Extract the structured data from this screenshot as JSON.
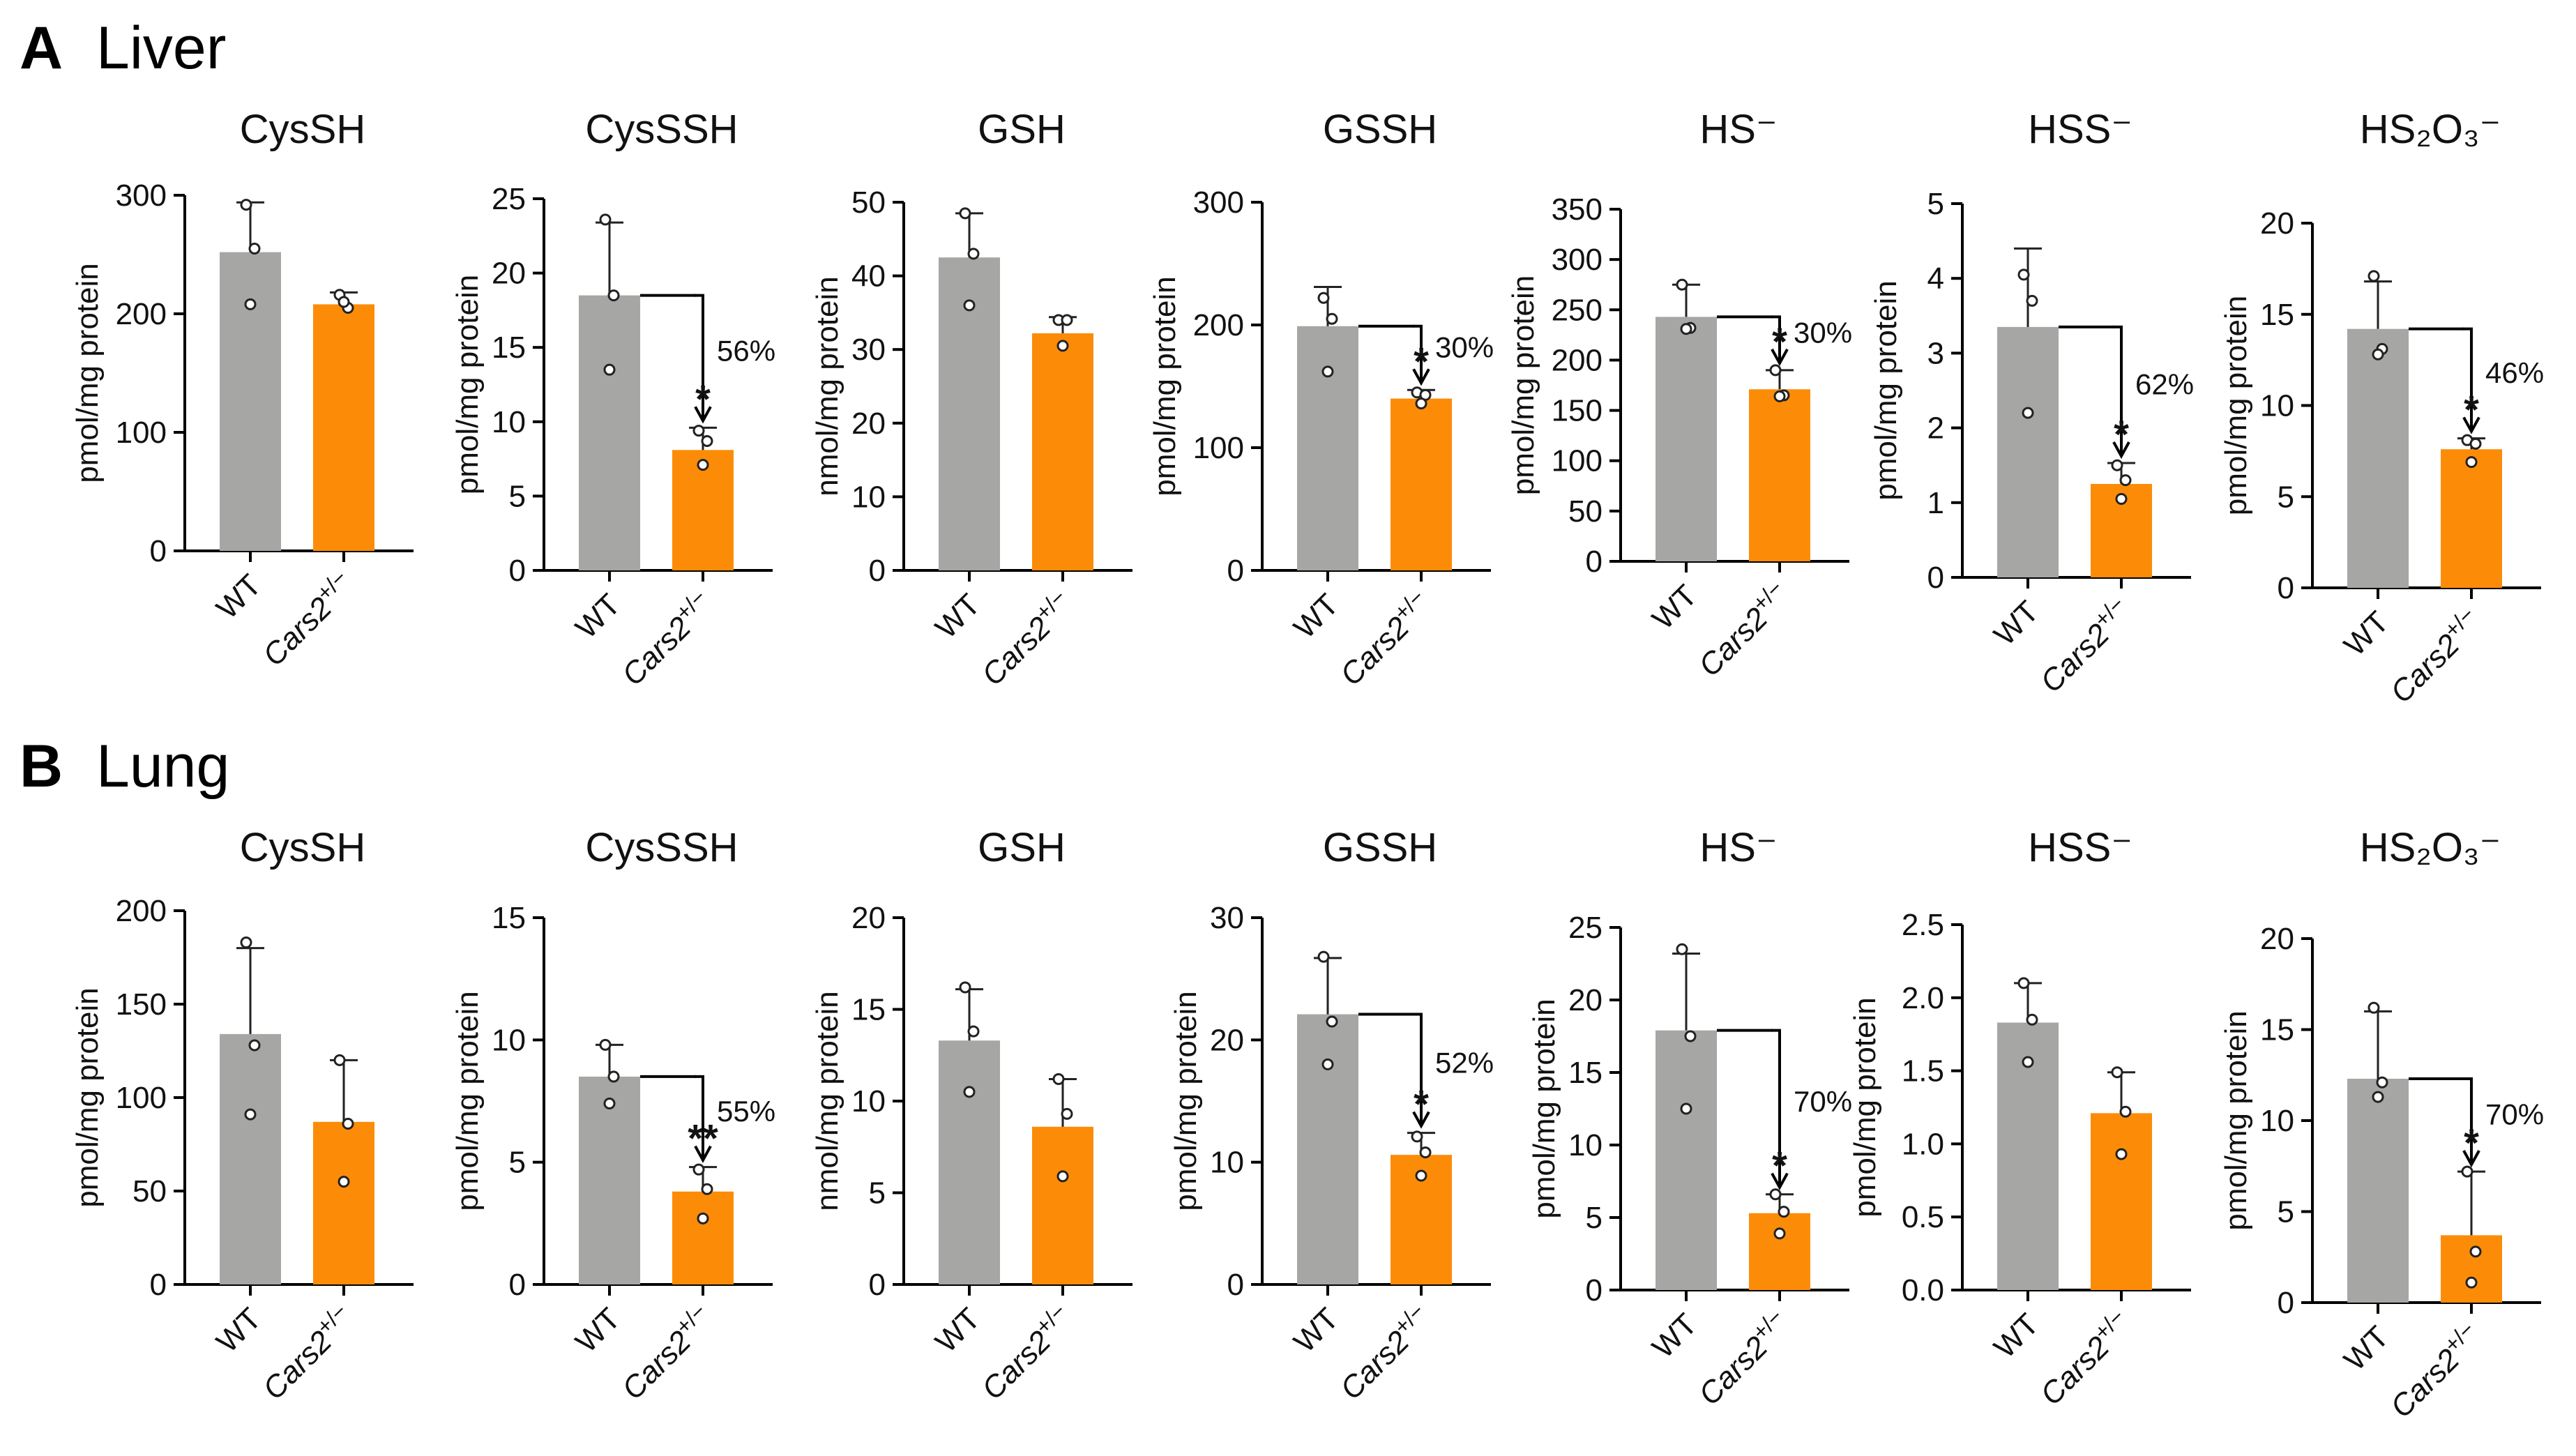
{
  "figure": {
    "panels": [
      {
        "letter": "A",
        "name": "Liver"
      },
      {
        "letter": "B",
        "name": "Lung"
      }
    ]
  },
  "colors": {
    "wt": "#a6a6a4",
    "mutant": "#fc8c08",
    "text": "#111111"
  },
  "categories": [
    "WT",
    "Cars2"
  ],
  "category_superscript": "+/−",
  "chart_data": [
    {
      "type": "bar",
      "panel": "A",
      "title": "CysSH",
      "ylabel": "pmol/mg protein",
      "ylim": [
        0,
        300
      ],
      "ticks": [
        0,
        100,
        200,
        300
      ],
      "series": [
        {
          "name": "WT",
          "mean": 252,
          "sd": 42,
          "points": [
            292,
            255,
            208
          ]
        },
        {
          "name": "Cars2+/−",
          "mean": 208,
          "sd": 10,
          "points": [
            216,
            205,
            210
          ]
        }
      ],
      "sig": null
    },
    {
      "type": "bar",
      "panel": "A",
      "title": "CysSSH",
      "ylabel": "pmol/mg protein",
      "ylim": [
        0,
        25
      ],
      "ticks": [
        0,
        5,
        10,
        15,
        20,
        25
      ],
      "series": [
        {
          "name": "WT",
          "mean": 18.5,
          "sd": 4.9,
          "points": [
            23.6,
            18.5,
            13.5
          ]
        },
        {
          "name": "Cars2+/−",
          "mean": 8.1,
          "sd": 1.5,
          "points": [
            9.4,
            8.7,
            7.1
          ]
        }
      ],
      "sig": {
        "pct": "56%",
        "stars": "*"
      }
    },
    {
      "type": "bar",
      "panel": "A",
      "title": "GSH",
      "ylabel": "nmol/mg protein",
      "ylim": [
        0,
        50
      ],
      "ticks": [
        0,
        10,
        20,
        30,
        40,
        50
      ],
      "series": [
        {
          "name": "WT",
          "mean": 42.5,
          "sd": 6,
          "points": [
            48.5,
            43,
            36
          ]
        },
        {
          "name": "Cars2+/−",
          "mean": 32.2,
          "sd": 2.2,
          "points": [
            34,
            34,
            30.5
          ]
        }
      ],
      "sig": null
    },
    {
      "type": "bar",
      "panel": "A",
      "title": "GSSH",
      "ylabel": "pmol/mg protein",
      "ylim": [
        0,
        300
      ],
      "ticks": [
        0,
        100,
        200,
        300
      ],
      "series": [
        {
          "name": "WT",
          "mean": 199,
          "sd": 32,
          "points": [
            222,
            205,
            162
          ]
        },
        {
          "name": "Cars2+/−",
          "mean": 140,
          "sd": 7,
          "points": [
            145,
            143,
            136
          ]
        }
      ],
      "sig": {
        "pct": "30%",
        "stars": "*"
      }
    },
    {
      "type": "bar",
      "panel": "A",
      "title": "HS⁻",
      "ylabel": "pmol/mg protein",
      "ylim": [
        0,
        350
      ],
      "ticks": [
        0,
        50,
        100,
        150,
        200,
        250,
        300,
        350
      ],
      "series": [
        {
          "name": "WT",
          "mean": 243,
          "sd": 32,
          "points": [
            275,
            232,
            231
          ]
        },
        {
          "name": "Cars2+/−",
          "mean": 171,
          "sd": 19,
          "points": [
            190,
            165,
            164
          ]
        }
      ],
      "sig": {
        "pct": "30%",
        "stars": "*"
      }
    },
    {
      "type": "bar",
      "panel": "A",
      "title": "HSS⁻",
      "ylabel": "pmol/mg protein",
      "ylim": [
        0,
        5
      ],
      "ticks": [
        0,
        1,
        2,
        3,
        4,
        5
      ],
      "series": [
        {
          "name": "WT",
          "mean": 3.35,
          "sd": 1.05,
          "points": [
            4.05,
            3.7,
            2.2
          ]
        },
        {
          "name": "Cars2+/−",
          "mean": 1.25,
          "sd": 0.28,
          "points": [
            1.5,
            1.3,
            1.05
          ]
        }
      ],
      "sig": {
        "pct": "62%",
        "stars": "*"
      }
    },
    {
      "type": "bar",
      "panel": "A",
      "title": "HS₂O₃⁻",
      "ylabel": "pmol/mg protein",
      "ylim": [
        0,
        20
      ],
      "ticks": [
        0,
        5,
        10,
        15,
        20
      ],
      "series": [
        {
          "name": "WT",
          "mean": 14.2,
          "sd": 2.6,
          "points": [
            17.1,
            13.1,
            12.8
          ]
        },
        {
          "name": "Cars2+/−",
          "mean": 7.6,
          "sd": 0.6,
          "points": [
            8.1,
            7.9,
            6.9
          ]
        }
      ],
      "sig": {
        "pct": "46%",
        "stars": "*"
      }
    },
    {
      "type": "bar",
      "panel": "B",
      "title": "CysSH",
      "ylabel": "pmol/mg protein",
      "ylim": [
        0,
        200
      ],
      "ticks": [
        0,
        50,
        100,
        150,
        200
      ],
      "series": [
        {
          "name": "WT",
          "mean": 134,
          "sd": 46,
          "points": [
            183,
            128,
            91
          ]
        },
        {
          "name": "Cars2+/−",
          "mean": 87,
          "sd": 33,
          "points": [
            120,
            86,
            55
          ]
        }
      ],
      "sig": null
    },
    {
      "type": "bar",
      "panel": "B",
      "title": "CysSSH",
      "ylabel": "pmol/mg protein",
      "ylim": [
        0,
        15
      ],
      "ticks": [
        0,
        5,
        10,
        15
      ],
      "series": [
        {
          "name": "WT",
          "mean": 8.5,
          "sd": 1.3,
          "points": [
            9.8,
            8.5,
            7.4
          ]
        },
        {
          "name": "Cars2+/−",
          "mean": 3.8,
          "sd": 1.0,
          "points": [
            4.7,
            3.9,
            2.7
          ]
        }
      ],
      "sig": {
        "pct": "55%",
        "stars": "**"
      }
    },
    {
      "type": "bar",
      "panel": "B",
      "title": "GSH",
      "ylabel": "nmol/mg protein",
      "ylim": [
        0,
        20
      ],
      "ticks": [
        0,
        5,
        10,
        15,
        20
      ],
      "series": [
        {
          "name": "WT",
          "mean": 13.3,
          "sd": 2.8,
          "points": [
            16.2,
            13.8,
            10.5
          ]
        },
        {
          "name": "Cars2+/−",
          "mean": 8.6,
          "sd": 2.6,
          "points": [
            11.2,
            9.3,
            5.9
          ]
        }
      ],
      "sig": null
    },
    {
      "type": "bar",
      "panel": "B",
      "title": "GSSH",
      "ylabel": "pmol/mg protein",
      "ylim": [
        0,
        30
      ],
      "ticks": [
        0,
        10,
        20,
        30
      ],
      "series": [
        {
          "name": "WT",
          "mean": 22.1,
          "sd": 4.6,
          "points": [
            26.8,
            21.5,
            18
          ]
        },
        {
          "name": "Cars2+/−",
          "mean": 10.6,
          "sd": 1.8,
          "points": [
            12.1,
            10.8,
            8.9
          ]
        }
      ],
      "sig": {
        "pct": "52%",
        "stars": "*"
      }
    },
    {
      "type": "bar",
      "panel": "B",
      "title": "HS⁻",
      "ylabel": "pmol/mg protein",
      "ylim": [
        0,
        25
      ],
      "ticks": [
        0,
        5,
        10,
        15,
        20,
        25
      ],
      "series": [
        {
          "name": "WT",
          "mean": 17.9,
          "sd": 5.3,
          "points": [
            23.5,
            17.5,
            12.5
          ]
        },
        {
          "name": "Cars2+/−",
          "mean": 5.3,
          "sd": 1.3,
          "points": [
            6.6,
            5.4,
            3.9
          ]
        }
      ],
      "sig": {
        "pct": "70%",
        "stars": "*"
      }
    },
    {
      "type": "bar",
      "panel": "B",
      "title": "HSS⁻",
      "ylabel": "pmol/mg protein",
      "ylim": [
        0,
        2.5
      ],
      "ticks": [
        "0.0",
        "0.5",
        "1.0",
        "1.5",
        "2.0",
        "2.5"
      ],
      "series": [
        {
          "name": "WT",
          "mean": 1.83,
          "sd": 0.27,
          "points": [
            2.1,
            1.85,
            1.56
          ]
        },
        {
          "name": "Cars2+/−",
          "mean": 1.21,
          "sd": 0.28,
          "points": [
            1.49,
            1.22,
            0.93
          ]
        }
      ],
      "sig": null
    },
    {
      "type": "bar",
      "panel": "B",
      "title": "HS₂O₃⁻",
      "ylabel": "pmol/mg protein",
      "ylim": [
        0,
        20
      ],
      "ticks": [
        0,
        5,
        10,
        15,
        20
      ],
      "series": [
        {
          "name": "WT",
          "mean": 12.3,
          "sd": 3.7,
          "points": [
            16.2,
            12.1,
            11.3
          ]
        },
        {
          "name": "Cars2+/−",
          "mean": 3.7,
          "sd": 3.5,
          "points": [
            7.2,
            2.8,
            1.1
          ]
        }
      ],
      "sig": {
        "pct": "70%",
        "stars": "*"
      }
    }
  ]
}
